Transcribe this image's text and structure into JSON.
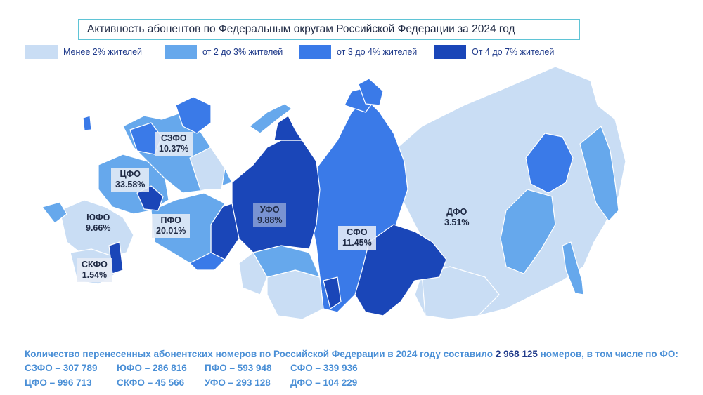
{
  "title": "Активность абонентов по Федеральным округам Российской Федерации за 2024 год",
  "legend": [
    {
      "label": "Менее 2% жителей",
      "color": "#c9ddf4"
    },
    {
      "label": "от 2 до 3% жителей",
      "color": "#66a8ec"
    },
    {
      "label": "от 3 до 4% жителей",
      "color": "#3a7ae8"
    },
    {
      "label": "От 4 до 7% жителей",
      "color": "#1a46b8"
    }
  ],
  "districts": [
    {
      "name": "СЗФО",
      "value": "10.37%"
    },
    {
      "name": "ЦФО",
      "value": "33.58%"
    },
    {
      "name": "ЮФО",
      "value": "9.66%"
    },
    {
      "name": "ПФО",
      "value": "20.01%"
    },
    {
      "name": "СКФО",
      "value": "1.54%"
    },
    {
      "name": "УФО",
      "value": "9.88%"
    },
    {
      "name": "СФО",
      "value": "11.45%"
    },
    {
      "name": "ДФО",
      "value": "3.51%"
    }
  ],
  "summary": {
    "text_before": "Количество перенесенных абонентских номеров по Российской Федерации в 2024 году составило ",
    "total": "2 968 125",
    "text_after": " номеров, в том числе по ФО:"
  },
  "counts": [
    "СЗФО – 307 789",
    "ЮФО – 286 816",
    "ПФО – 593 948",
    "СФО – 339 936",
    "ЦФО – 996 713",
    "СКФО – 45 566",
    "УФО – 293 128",
    "ДФО – 104 229"
  ]
}
